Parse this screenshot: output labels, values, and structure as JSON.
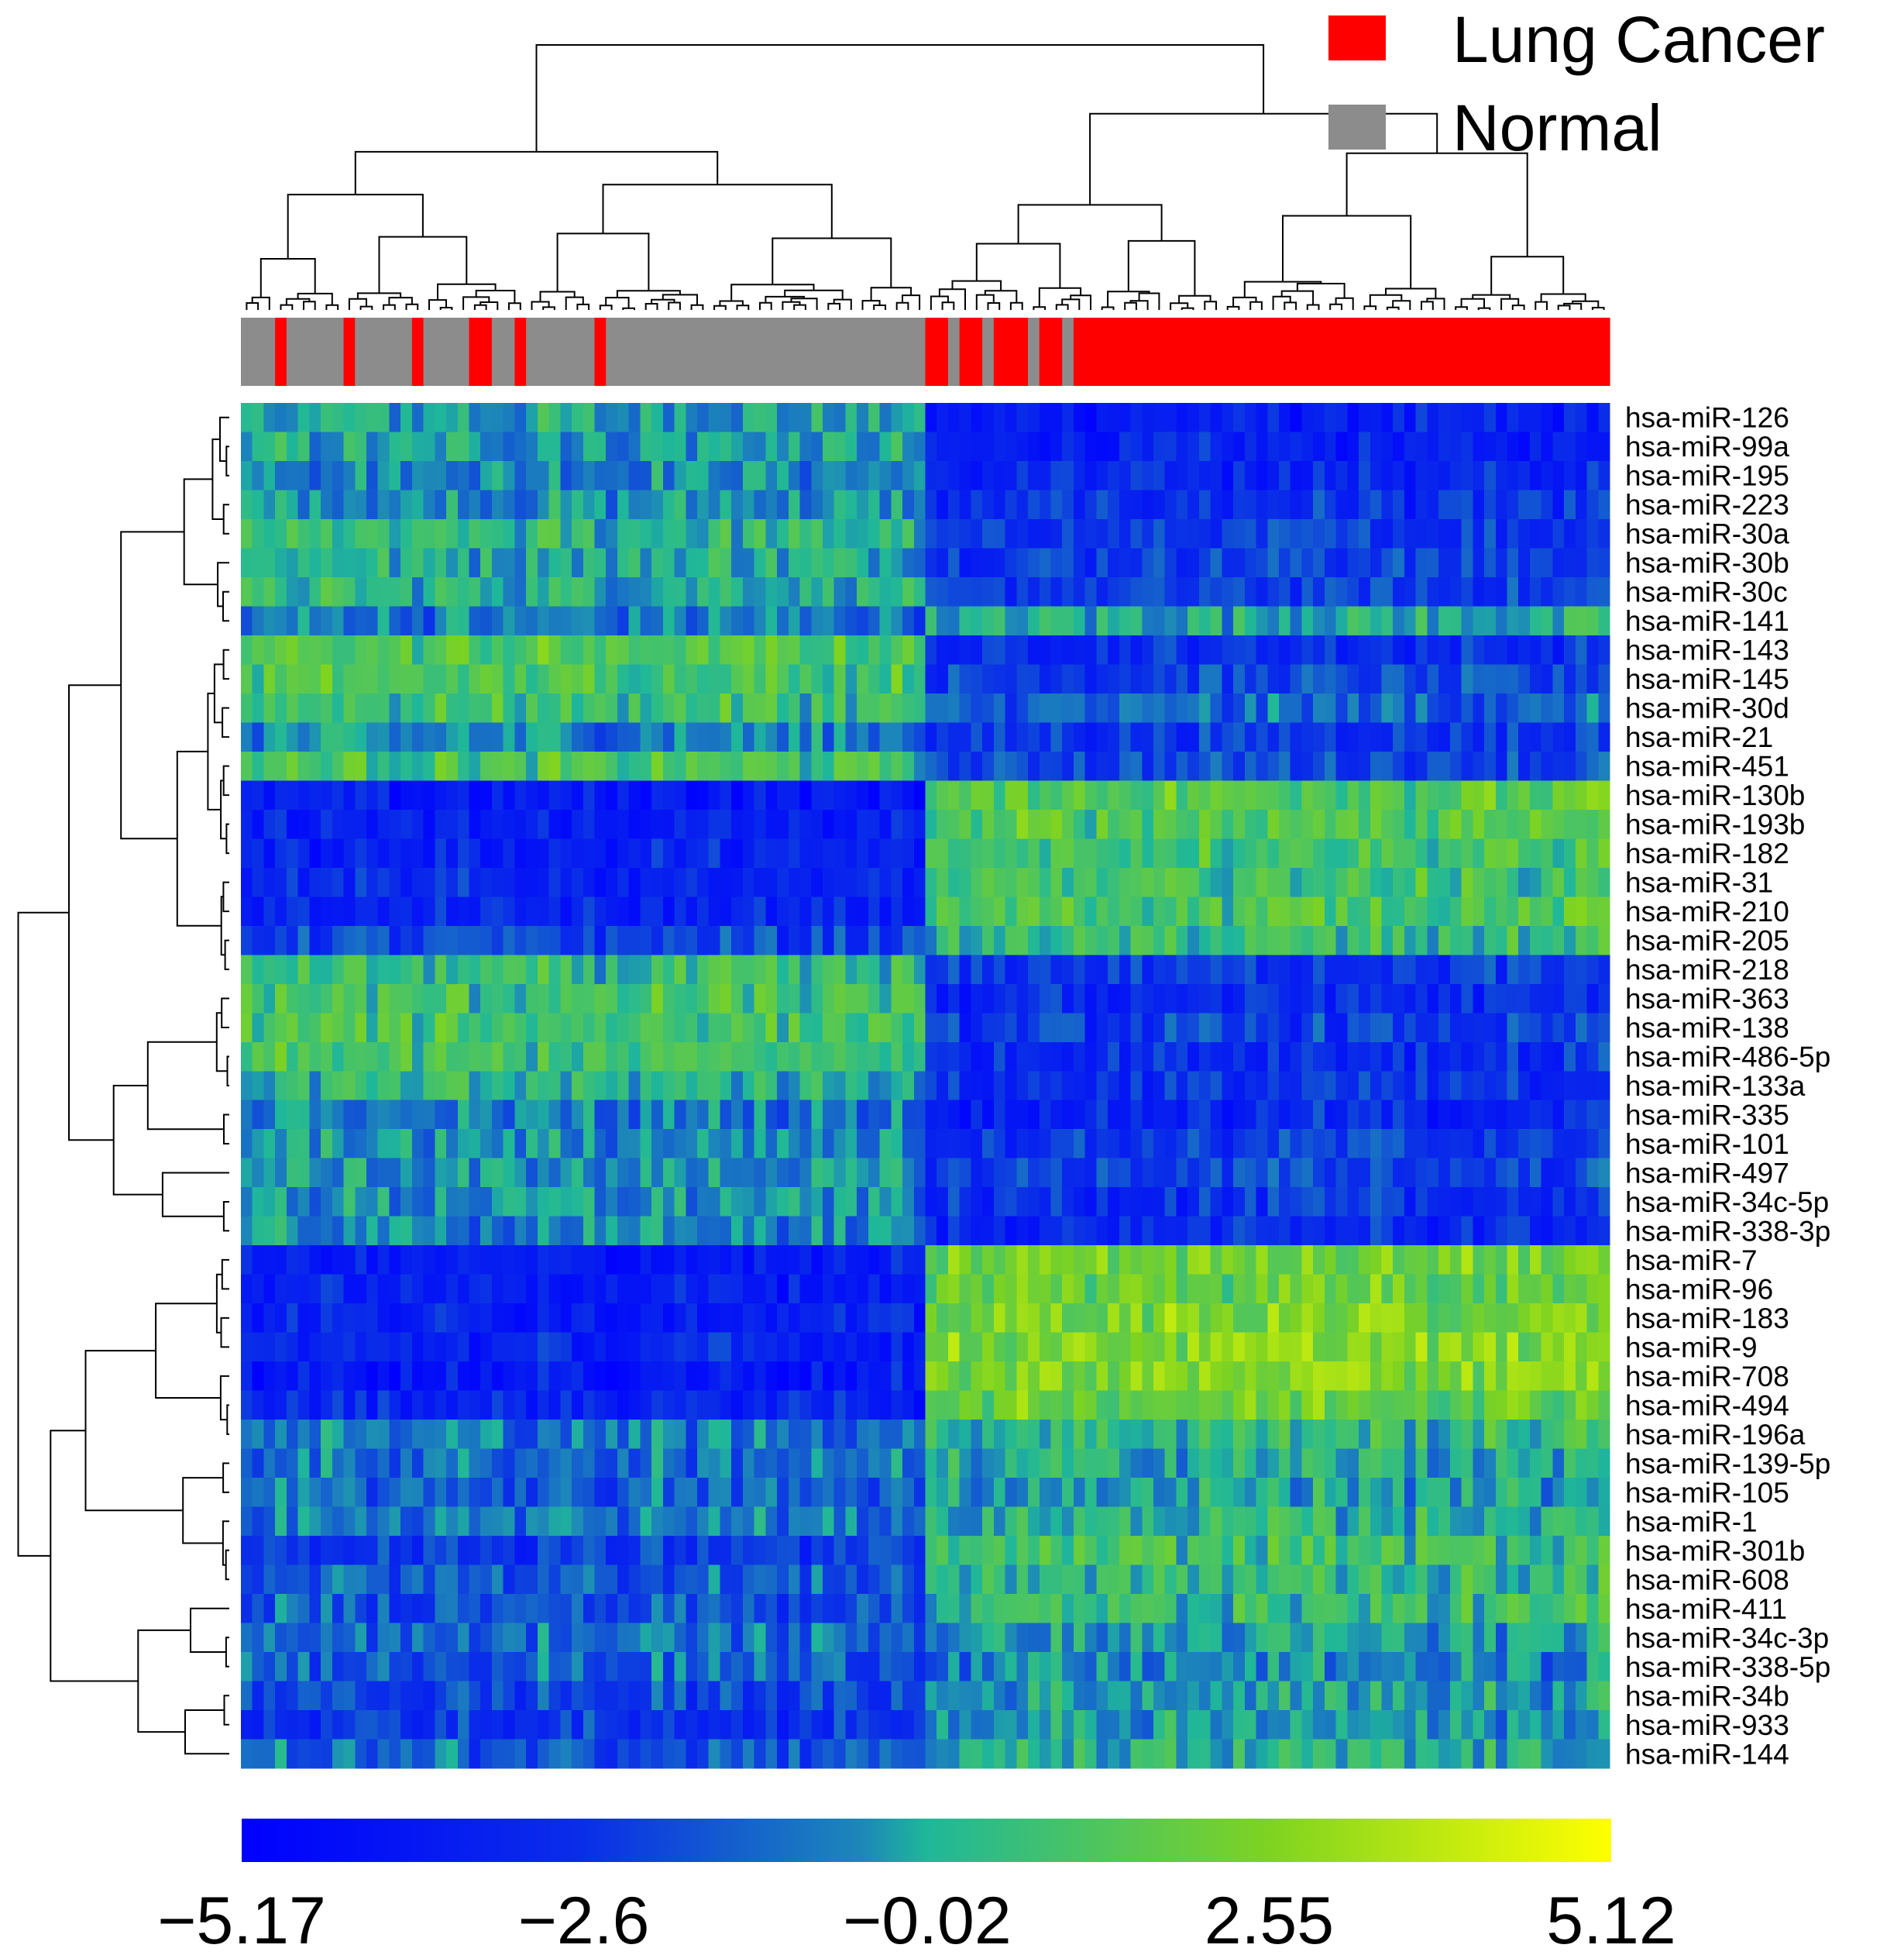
{
  "chart_data": {
    "type": "heatmap",
    "title": "",
    "legend": {
      "placement": "top-right",
      "entries": [
        {
          "label": "Lung Cancer",
          "color": "#ff0000"
        },
        {
          "label": "Normal",
          "color": "#8c8c8c"
        }
      ]
    },
    "color_scale": {
      "colors": [
        "#0000ff",
        "#0a2ee8",
        "#1d88b8",
        "#1fb79a",
        "#7ed321",
        "#ffff00"
      ],
      "stops": [
        -5.17,
        -2.6,
        -0.5,
        -0.02,
        2.55,
        5.12
      ],
      "min": -5.17,
      "max": 5.12,
      "tick_labels": [
        "−5.17",
        "−2.6",
        "−0.02",
        "2.55",
        "5.12"
      ],
      "tick_values": [
        -5.17,
        -2.6,
        -0.02,
        2.55,
        5.12
      ]
    },
    "rows": [
      "hsa-miR-126",
      "hsa-miR-99a",
      "hsa-miR-195",
      "hsa-miR-223",
      "hsa-miR-30a",
      "hsa-miR-30b",
      "hsa-miR-30c",
      "hsa-miR-141",
      "hsa-miR-143",
      "hsa-miR-145",
      "hsa-miR-30d",
      "hsa-miR-21",
      "hsa-miR-451",
      "hsa-miR-130b",
      "hsa-miR-193b",
      "hsa-miR-182",
      "hsa-miR-31",
      "hsa-miR-210",
      "hsa-miR-205",
      "hsa-miR-218",
      "hsa-miR-363",
      "hsa-miR-138",
      "hsa-miR-486-5p",
      "hsa-miR-133a",
      "hsa-miR-335",
      "hsa-miR-101",
      "hsa-miR-497",
      "hsa-miR-34c-5p",
      "hsa-miR-338-3p",
      "hsa-miR-7",
      "hsa-miR-96",
      "hsa-miR-183",
      "hsa-miR-9",
      "hsa-miR-708",
      "hsa-miR-494",
      "hsa-miR-196a",
      "hsa-miR-139-5p",
      "hsa-miR-105",
      "hsa-miR-1",
      "hsa-miR-301b",
      "hsa-miR-608",
      "hsa-miR-411",
      "hsa-miR-34c-3p",
      "hsa-miR-338-5p",
      "hsa-miR-34b",
      "hsa-miR-933",
      "hsa-miR-144"
    ],
    "column_groups": [
      {
        "label": "Normal",
        "n_samples": 60
      },
      {
        "label": "Lung Cancer",
        "n_samples": 60
      }
    ],
    "sample_annotation": [
      0,
      0,
      0,
      1,
      0,
      0,
      0,
      0,
      0,
      1,
      0,
      0,
      0,
      0,
      0,
      1,
      0,
      0,
      0,
      0,
      1,
      1,
      0,
      0,
      1,
      0,
      0,
      0,
      0,
      0,
      0,
      1,
      0,
      0,
      0,
      0,
      0,
      0,
      0,
      0,
      0,
      0,
      0,
      0,
      0,
      0,
      0,
      0,
      0,
      0,
      0,
      0,
      0,
      0,
      0,
      0,
      0,
      0,
      0,
      0,
      1,
      1,
      0,
      1,
      1,
      0,
      1,
      1,
      1,
      0,
      1,
      1,
      0,
      1,
      1,
      1,
      1,
      1,
      1,
      1,
      1,
      1,
      1,
      1,
      1,
      1,
      1,
      1,
      1,
      1,
      1,
      1,
      1,
      1,
      1,
      1,
      1,
      1,
      1,
      1,
      1,
      1,
      1,
      1,
      1,
      1,
      1,
      1,
      1,
      1,
      1,
      1,
      1,
      1,
      1,
      1,
      1,
      1,
      1,
      1
    ],
    "row_means": {
      "normal": [
        -0.2,
        -0.3,
        -0.6,
        -0.5,
        0.3,
        0.1,
        0.2,
        -1.0,
        1.2,
        1.1,
        0.8,
        -0.8,
        1.0,
        -3.8,
        -3.6,
        -3.4,
        -3.2,
        -3.4,
        -2.2,
        0.4,
        0.8,
        1.0,
        0.8,
        0.2,
        -1.0,
        -0.6,
        -0.6,
        -0.6,
        -0.8,
        -3.8,
        -3.5,
        -3.4,
        -3.3,
        -3.8,
        -3.2,
        -1.0,
        -1.2,
        -1.5,
        -1.0,
        -2.4,
        -1.6,
        -1.8,
        -1.2,
        -1.5,
        -2.2,
        -2.5,
        -1.5
      ],
      "cancer": [
        -3.6,
        -3.5,
        -3.2,
        -2.8,
        -2.5,
        -2.2,
        -2.4,
        0.0,
        -2.8,
        -2.2,
        -1.5,
        -2.5,
        -2.0,
        1.5,
        1.4,
        1.0,
        0.8,
        1.2,
        0.5,
        -2.5,
        -3.0,
        -2.5,
        -2.8,
        -2.8,
        -3.2,
        -2.4,
        -2.2,
        -2.8,
        -3.0,
        2.2,
        2.0,
        2.3,
        2.5,
        2.5,
        2.0,
        0.5,
        0.0,
        -0.2,
        0.2,
        0.8,
        0.5,
        0.6,
        -0.4,
        -0.8,
        -0.2,
        -0.5,
        0.0
      ]
    }
  }
}
